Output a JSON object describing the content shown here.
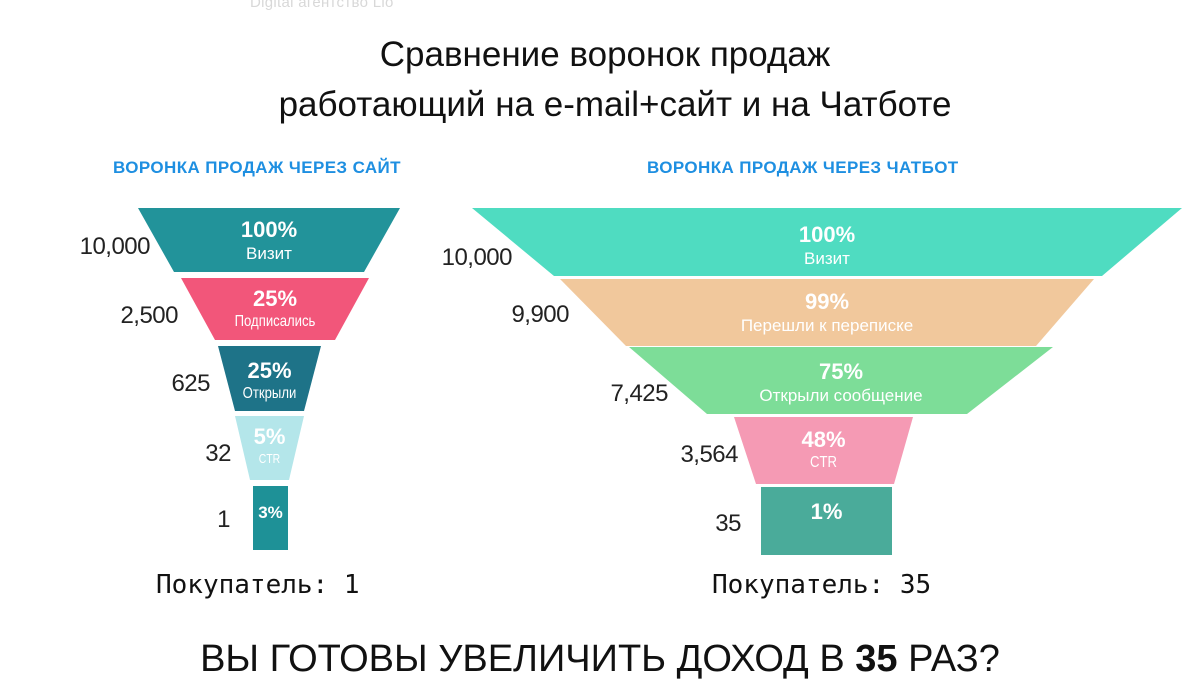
{
  "watermark": "Digital агентство Lio",
  "title": {
    "line1": "Сравнение воронок продаж",
    "line2": "работающий на e-mail+сайт  и  на  Чатботе"
  },
  "left_funnel": {
    "heading": "ВОРОНКА ПРОДАЖ ЧЕРЕЗ САЙТ",
    "stages": [
      {
        "percent": "100%",
        "label": "Визит",
        "count": "10,000",
        "color": "#22939a"
      },
      {
        "percent": "25%",
        "label": "Подписались",
        "count": "2,500",
        "color": "#f2567a"
      },
      {
        "percent": "25%",
        "label": "Открыли",
        "count": "625",
        "color": "#1e7388"
      },
      {
        "percent": "5%",
        "label": "CTR",
        "count": "32",
        "color": "#b4e6ea"
      },
      {
        "percent": "3%",
        "label": "",
        "count": "1",
        "color": "#1e9197"
      }
    ],
    "buyer": "Покупатель: 1"
  },
  "right_funnel": {
    "heading": "ВОРОНКА ПРОДАЖ ЧЕРЕЗ ЧАТБОТ",
    "stages": [
      {
        "percent": "100%",
        "label": "Визит",
        "count": "10,000",
        "color": "#4fdcc1"
      },
      {
        "percent": "99%",
        "label": "Перешли к переписке",
        "count": "9,900",
        "color": "#f1c89c"
      },
      {
        "percent": "75%",
        "label": "Открыли сообщение",
        "count": "7,425",
        "color": "#7ddd98"
      },
      {
        "percent": "48%",
        "label": "CTR",
        "count": "3,564",
        "color": "#f59ab4"
      },
      {
        "percent": "1%",
        "label": "",
        "count": "35",
        "color": "#4aab9a"
      }
    ],
    "buyer": "Покупатель: 35"
  },
  "cta": {
    "prefix": "ВЫ ГОТОВЫ УВЕЛИЧИТЬ ДОХОД В ",
    "number": "35",
    "suffix": " РАЗ?"
  }
}
